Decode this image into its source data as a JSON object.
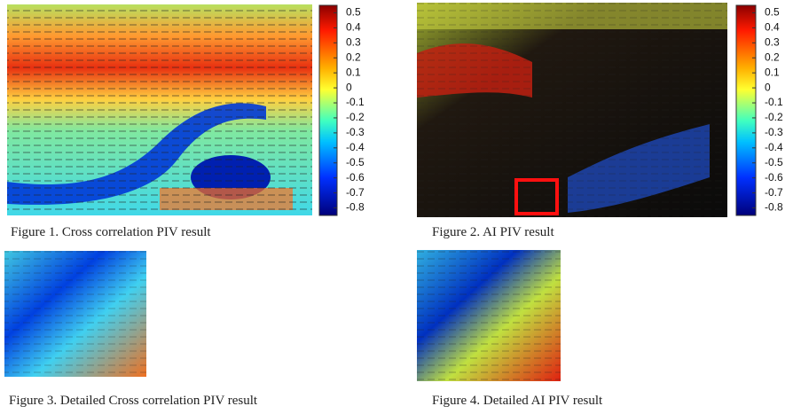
{
  "figures": [
    {
      "caption": "Figure 1. Cross correlation PIV result",
      "colorbar": {
        "range": [
          -0.85,
          0.55
        ],
        "ticks": [
          0.5,
          0.4,
          0.3,
          0.2,
          0.1,
          0,
          -0.1,
          -0.2,
          -0.3,
          -0.4,
          -0.5,
          -0.6,
          -0.7,
          -0.8
        ]
      }
    },
    {
      "caption": "Figure 2. AI PIV result",
      "colorbar": {
        "range": [
          -0.85,
          0.55
        ],
        "ticks": [
          0.5,
          0.4,
          0.3,
          0.2,
          0.1,
          0,
          -0.1,
          -0.2,
          -0.3,
          -0.4,
          -0.5,
          -0.6,
          -0.7,
          -0.8
        ]
      }
    },
    {
      "caption": "Figure 3. Detailed Cross correlation PIV result"
    },
    {
      "caption": "Figure 4. Detailed AI PIV result"
    }
  ]
}
